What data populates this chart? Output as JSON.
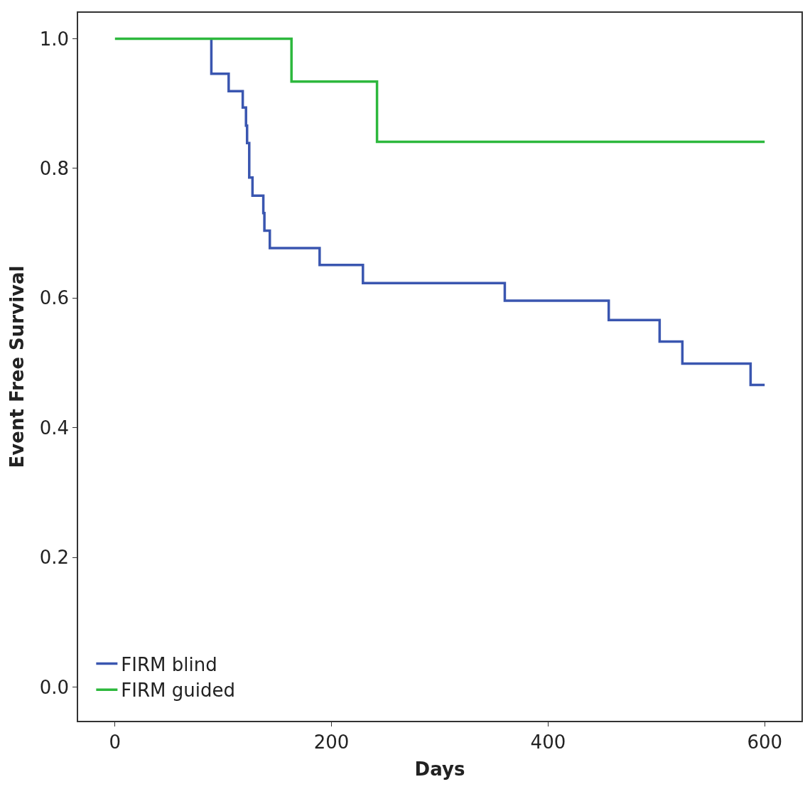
{
  "chart_data": {
    "type": "step",
    "xlabel": "Days",
    "ylabel": "Event Free Survival",
    "series": [
      {
        "name": "FIRM blind",
        "color": "#3a56b0",
        "x": [
          89,
          89,
          89,
          105,
          118,
          121,
          122,
          124,
          127,
          137,
          138,
          143,
          189,
          229,
          360,
          456,
          503,
          524,
          587,
          600
        ],
        "values": [
          1.0,
          0.973,
          0.946,
          0.919,
          0.894,
          0.866,
          0.839,
          0.786,
          0.758,
          0.731,
          0.704,
          0.677,
          0.651,
          0.623,
          0.596,
          0.566,
          0.533,
          0.499,
          0.466,
          0.466
        ]
      },
      {
        "name": "FIRM guided",
        "color": "#2db83d",
        "x": [
          0,
          163,
          242,
          600
        ],
        "values": [
          1.0,
          0.934,
          0.841,
          0.841
        ]
      }
    ],
    "xlim": [
      -34,
      634
    ],
    "ylim": [
      -0.052,
      1.04
    ],
    "xticks": [
      0,
      200,
      400,
      600
    ],
    "yticks": [
      {
        "value": 0,
        "label": "0.0"
      },
      {
        "value": 0.2,
        "label": "0.2"
      },
      {
        "value": 0.4,
        "label": "0.4"
      },
      {
        "value": 0.6,
        "label": "0.6"
      },
      {
        "value": 0.8,
        "label": "0.8"
      },
      {
        "value": 1.0,
        "label": "1.0"
      }
    ],
    "legend": "bottom left",
    "marker": "none",
    "line_style": "solid"
  }
}
